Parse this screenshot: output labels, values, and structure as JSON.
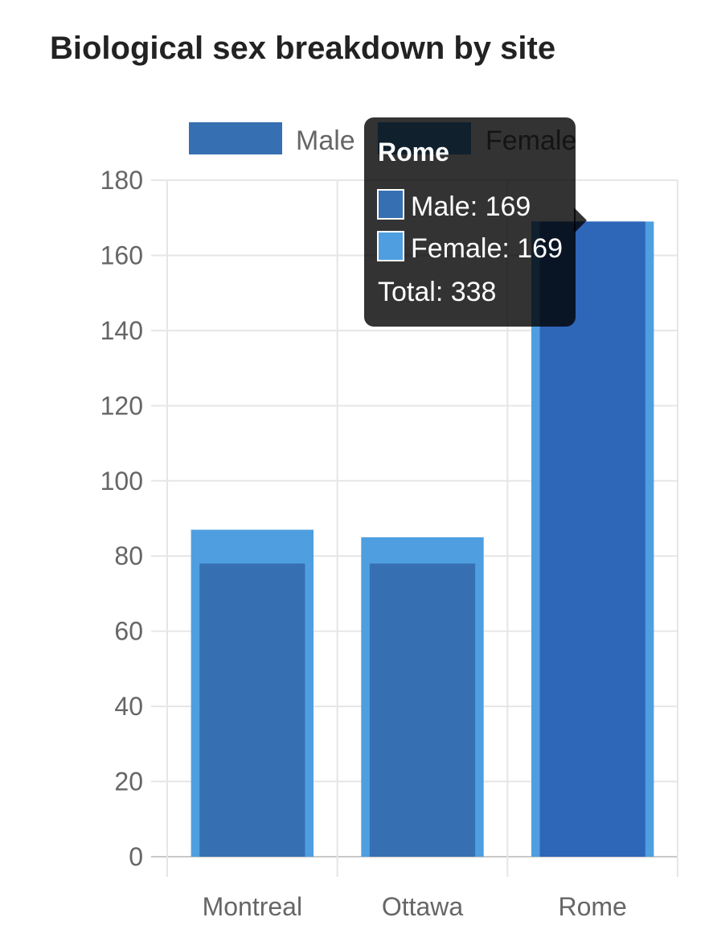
{
  "chart_data": {
    "type": "bar",
    "title": "Biological sex breakdown by site",
    "categories": [
      "Montreal",
      "Ottawa",
      "Rome"
    ],
    "series": [
      {
        "name": "Male",
        "values": [
          78,
          78,
          169
        ],
        "color": "#3670b2"
      },
      {
        "name": "Female",
        "values": [
          87,
          85,
          169
        ],
        "color": "#4f9fe0"
      }
    ],
    "xlabel": "",
    "ylabel": "",
    "ylim": [
      0,
      180
    ],
    "yticks": [
      0,
      20,
      40,
      60,
      80,
      100,
      120,
      140,
      160,
      180
    ],
    "grid": true,
    "legend_position": "top"
  },
  "tooltip": {
    "title": "Rome",
    "lines": [
      "Male: 169",
      "Female: 169"
    ],
    "total": "Total: 338"
  }
}
